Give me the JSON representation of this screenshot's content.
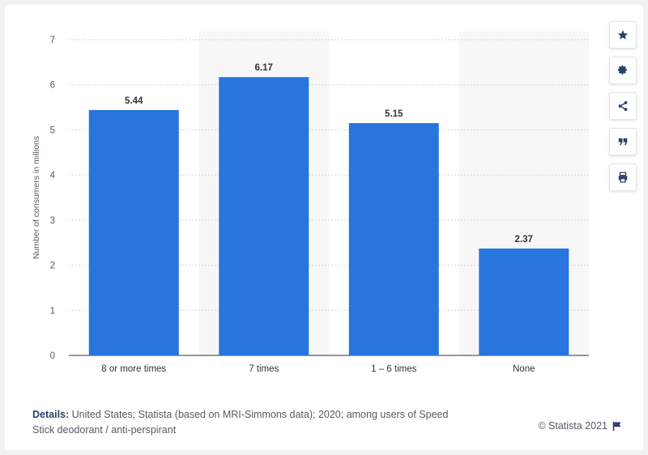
{
  "chart_data": {
    "type": "bar",
    "categories": [
      "8 or more times",
      "7 times",
      "1 – 6 times",
      "None"
    ],
    "values": [
      5.44,
      6.17,
      5.15,
      2.37
    ],
    "value_labels": [
      "5.44",
      "6.17",
      "5.15",
      "2.37"
    ],
    "title": "",
    "xlabel": "",
    "ylabel": "Number of consumers in millions",
    "ylim": [
      0,
      7
    ],
    "yticks": [
      0,
      1,
      2,
      3,
      4,
      5,
      6,
      7
    ],
    "grid": true,
    "bar_color": "#2876dd",
    "band_color": "#f7f7f7"
  },
  "toolbar": {
    "buttons": [
      "star-icon",
      "gear-icon",
      "share-icon",
      "quote-icon",
      "print-icon"
    ],
    "icon_color": "#2a3f6b"
  },
  "footer": {
    "details_label": "Details:",
    "details_text": "United States; Statista (based on MRI-Simmons data); 2020; among users of Speed Stick deodorant / anti-perspirant",
    "credit": "© Statista 2021"
  }
}
